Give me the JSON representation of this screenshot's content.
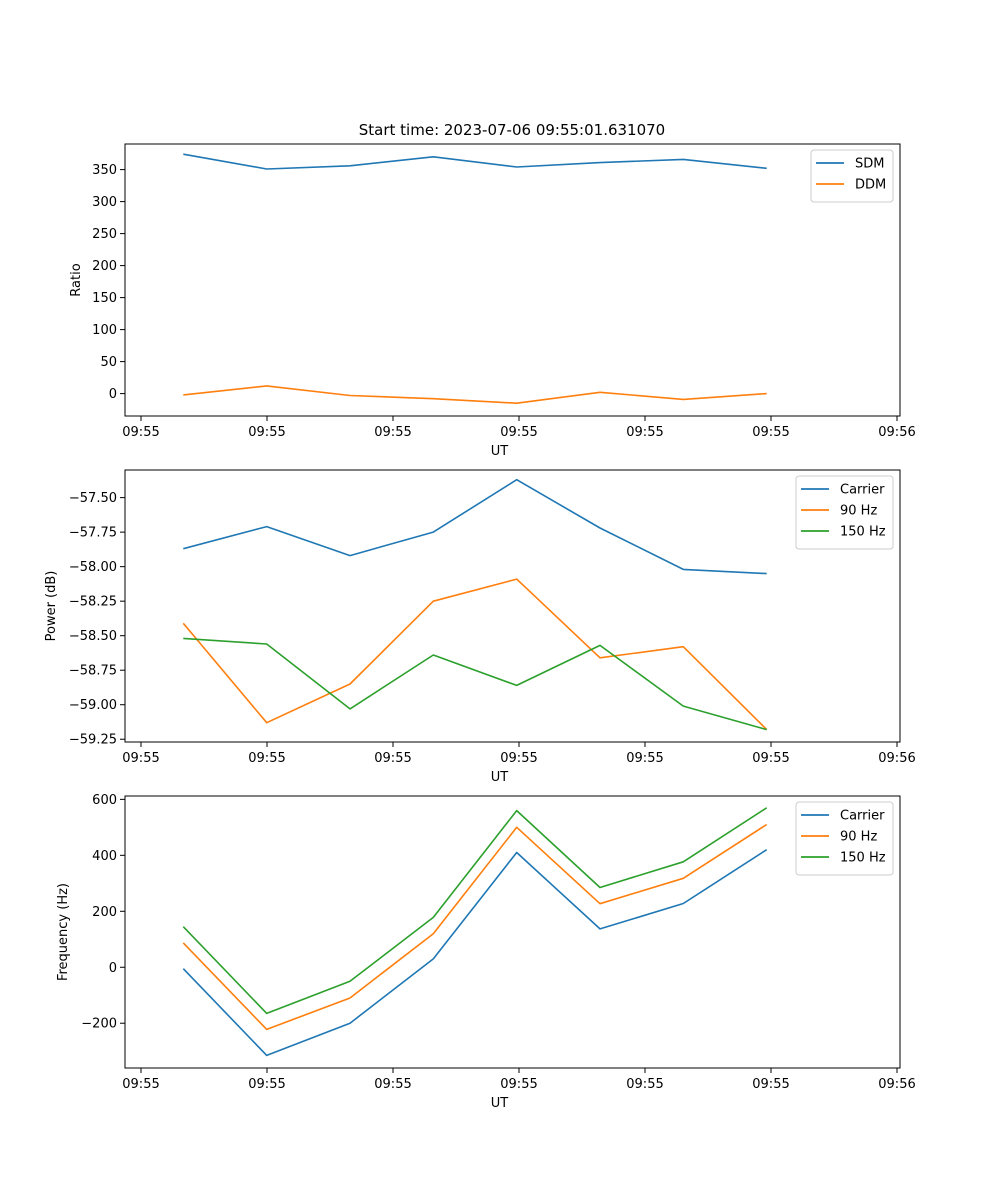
{
  "figure_title": "Start time: 2023-07-06 09:55:01.631070",
  "chart_data": [
    {
      "type": "line",
      "title": "Start time: 2023-07-06 09:55:01.631070",
      "xlabel": "UT",
      "ylabel": "Ratio",
      "x_ticks": [
        "09:55",
        "09:55",
        "09:55",
        "09:55",
        "09:55",
        "09:55",
        "09:56"
      ],
      "y_ticks": [
        "0",
        "50",
        "100",
        "150",
        "200",
        "250",
        "300",
        "350"
      ],
      "y_tick_values": [
        0,
        50,
        100,
        150,
        200,
        250,
        300,
        350
      ],
      "xlim": [
        -0.7,
        8.6
      ],
      "ylim": [
        -35,
        390
      ],
      "x": [
        0,
        1,
        2,
        3,
        4,
        5,
        6,
        7
      ],
      "legend_loc": "upper right",
      "series": [
        {
          "name": "SDM",
          "color": "#1f77b4",
          "values": [
            374,
            351,
            356,
            370,
            354,
            361,
            366,
            352
          ]
        },
        {
          "name": "DDM",
          "color": "#ff7f0e",
          "values": [
            -2,
            12,
            -3,
            -8,
            -15,
            2,
            -9,
            0
          ]
        }
      ]
    },
    {
      "type": "line",
      "title": "",
      "xlabel": "UT",
      "ylabel": "Power (dB)",
      "x_ticks": [
        "09:55",
        "09:55",
        "09:55",
        "09:55",
        "09:55",
        "09:55",
        "09:56"
      ],
      "y_ticks": [
        "−57.50",
        "−57.75",
        "−58.00",
        "−58.25",
        "−58.50",
        "−58.75",
        "−59.00",
        "−59.25"
      ],
      "y_tick_values": [
        -57.5,
        -57.75,
        -58.0,
        -58.25,
        -58.5,
        -58.75,
        -59.0,
        -59.25
      ],
      "xlim": [
        -0.7,
        8.6
      ],
      "ylim": [
        -59.27,
        -57.3
      ],
      "x": [
        0,
        1,
        2,
        3,
        4,
        5,
        6,
        7
      ],
      "legend_loc": "upper right",
      "series": [
        {
          "name": "Carrier",
          "color": "#1f77b4",
          "values": [
            -57.87,
            -57.71,
            -57.92,
            -57.75,
            -57.37,
            -57.72,
            -58.02,
            -58.05
          ]
        },
        {
          "name": "90 Hz",
          "color": "#ff7f0e",
          "values": [
            -58.41,
            -59.13,
            -58.85,
            -58.25,
            -58.09,
            -58.66,
            -58.58,
            -59.18
          ]
        },
        {
          "name": "150 Hz",
          "color": "#2ca02c",
          "values": [
            -58.52,
            -58.56,
            -59.03,
            -58.64,
            -58.86,
            -58.57,
            -59.01,
            -59.18
          ]
        }
      ]
    },
    {
      "type": "line",
      "title": "",
      "xlabel": "UT",
      "ylabel": "Frequency (Hz)",
      "x_ticks": [
        "09:55",
        "09:55",
        "09:55",
        "09:55",
        "09:55",
        "09:55",
        "09:56"
      ],
      "y_ticks": [
        "−200",
        "0",
        "200",
        "400",
        "600"
      ],
      "y_tick_values": [
        -200,
        0,
        200,
        400,
        600
      ],
      "xlim": [
        -0.7,
        8.6
      ],
      "ylim": [
        -360,
        612
      ],
      "x": [
        0,
        1,
        2,
        3,
        4,
        5,
        6,
        7
      ],
      "legend_loc": "upper right",
      "series": [
        {
          "name": "Carrier",
          "color": "#1f77b4",
          "values": [
            -5,
            -315,
            -200,
            30,
            410,
            137,
            228,
            420
          ]
        },
        {
          "name": "90 Hz",
          "color": "#ff7f0e",
          "values": [
            87,
            -222,
            -110,
            120,
            500,
            227,
            318,
            510
          ]
        },
        {
          "name": "150 Hz",
          "color": "#2ca02c",
          "values": [
            145,
            -165,
            -50,
            178,
            560,
            285,
            377,
            570
          ]
        }
      ]
    }
  ]
}
